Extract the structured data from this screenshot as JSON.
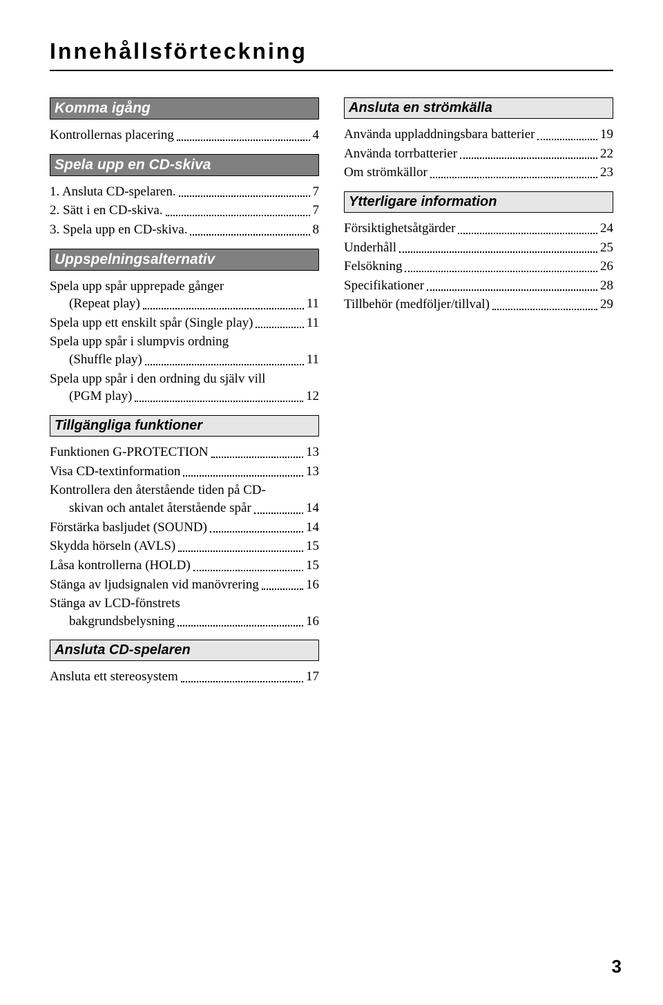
{
  "title": "Innehållsförteckning",
  "page_number": "3",
  "colors": {
    "section_dark_bg": "#808080",
    "section_dark_fg": "#ffffff",
    "section_light_bg": "#e6e6e6",
    "section_light_fg": "#000000",
    "border": "#000000",
    "text": "#000000",
    "background": "#ffffff"
  },
  "left": {
    "s1": {
      "header": "Komma igång",
      "e1": {
        "label": "Kontrollernas placering",
        "page": "4"
      }
    },
    "s2": {
      "header": "Spela upp en CD-skiva",
      "e1": {
        "label": "1. Ansluta CD-spelaren.",
        "page": "7"
      },
      "e2": {
        "label": "2. Sätt i en CD-skiva.",
        "page": "7"
      },
      "e3": {
        "label": "3. Spela upp en CD-skiva.",
        "page": "8"
      }
    },
    "s3": {
      "header": "Uppspelningsalternativ",
      "e1": {
        "l1": "Spela upp spår upprepade gånger",
        "l2": "(Repeat play)",
        "page": "11"
      },
      "e2": {
        "label": "Spela upp ett enskilt spår (Single play)",
        "page": "11"
      },
      "e3": {
        "l1": "Spela upp spår i slumpvis ordning",
        "l2": "(Shuffle play)",
        "page": "11"
      },
      "e4": {
        "l1": "Spela upp spår i den ordning du själv vill",
        "l2": "(PGM play)",
        "page": "12"
      }
    },
    "s4": {
      "header": "Tillgängliga funktioner",
      "e1": {
        "label": "Funktionen G-PROTECTION",
        "page": "13"
      },
      "e2": {
        "label": "Visa CD-textinformation",
        "page": "13"
      },
      "e3": {
        "l1": "Kontrollera den återstående tiden på CD-",
        "l2": "skivan och antalet återstående spår",
        "page": "14"
      },
      "e4": {
        "label": "Förstärka basljudet (SOUND)",
        "page": "14"
      },
      "e5": {
        "label": "Skydda hörseln (AVLS)",
        "page": "15"
      },
      "e6": {
        "label": "Låsa kontrollerna (HOLD)",
        "page": "15"
      },
      "e7": {
        "label": "Stänga av ljudsignalen vid manövrering",
        "page": "16"
      },
      "e8": {
        "l1": "Stänga av LCD-fönstrets",
        "l2": "bakgrundsbelysning",
        "page": "16"
      }
    },
    "s5": {
      "header": "Ansluta CD-spelaren",
      "e1": {
        "label": "Ansluta ett stereosystem",
        "page": "17"
      }
    }
  },
  "right": {
    "s1": {
      "header": "Ansluta en strömkälla",
      "e1": {
        "label": "Använda uppladdningsbara batterier",
        "page": "19"
      },
      "e2": {
        "label": "Använda torrbatterier",
        "page": "22"
      },
      "e3": {
        "label": "Om strömkällor",
        "page": "23"
      }
    },
    "s2": {
      "header": "Ytterligare information",
      "e1": {
        "label": "Försiktighetsåtgärder",
        "page": "24"
      },
      "e2": {
        "label": "Underhåll",
        "page": "25"
      },
      "e3": {
        "label": "Felsökning",
        "page": "26"
      },
      "e4": {
        "label": "Specifikationer",
        "page": "28"
      },
      "e5": {
        "label": "Tillbehör (medföljer/tillval)",
        "page": "29"
      }
    }
  }
}
